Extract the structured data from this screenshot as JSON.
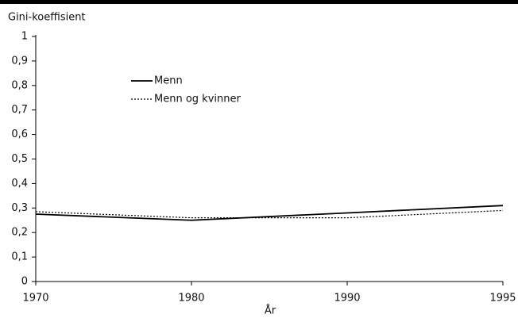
{
  "chart_data": {
    "type": "line",
    "y_label": "Gini-koeffisient",
    "x_label": "År",
    "categories": [
      "1970",
      "1980",
      "1990",
      "1995"
    ],
    "series": [
      {
        "name": "Menn",
        "color": "#000000",
        "dash": "solid",
        "values": [
          0.275,
          0.25,
          0.28,
          0.31
        ]
      },
      {
        "name": "Menn og kvinner",
        "color": "#000000",
        "dash": "dotted",
        "values": [
          0.285,
          0.26,
          0.26,
          0.29
        ]
      }
    ],
    "ylim": [
      0,
      1
    ],
    "yticks": [
      0,
      {
        "value": 0.1,
        "label": "0,1"
      },
      {
        "value": 0.2,
        "label": "0,2"
      },
      {
        "value": 0.3,
        "label": "0,3"
      },
      {
        "value": 0.4,
        "label": "0,4"
      },
      {
        "value": 0.5,
        "label": "0,5"
      },
      {
        "value": 0.6,
        "label": "0,6"
      },
      {
        "value": 0.7,
        "label": "0,7"
      },
      {
        "value": 0.8,
        "label": "0,8"
      },
      {
        "value": 0.9,
        "label": "0,9"
      },
      1
    ],
    "grid": false,
    "legend": "upper left"
  }
}
